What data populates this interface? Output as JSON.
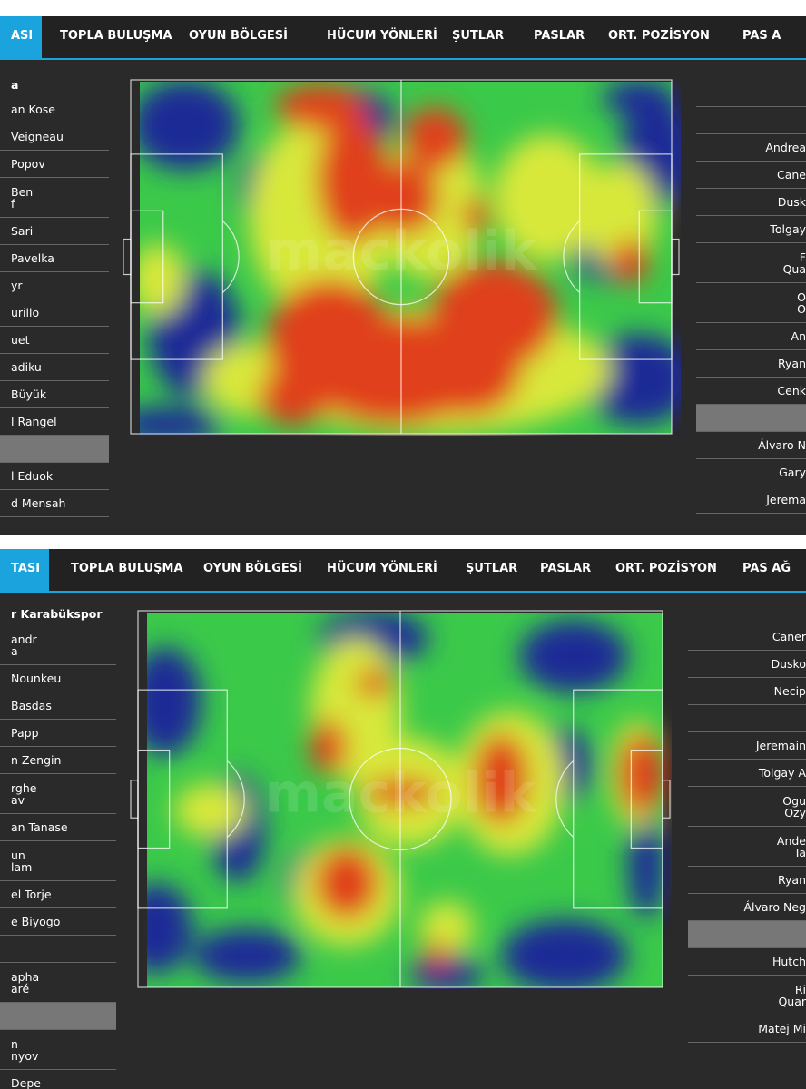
{
  "watermark": "mackolik",
  "panels": [
    {
      "tabs": [
        "ASI",
        "TOPLA BULUŞMA",
        "OYUN BÖLGESİ",
        "HÜCUM YÖNLERİ",
        "ŞUTLAR",
        "PASLAR",
        "ORT. POZİSYON",
        "PAS A"
      ],
      "left_players": [
        "a",
        "an Kose",
        "Veigneau",
        "Popov",
        "Ben\nf",
        "Sari",
        "Pavelka",
        "yr",
        "urillo",
        "uet",
        "adiku",
        "Büyük",
        "l Rangel",
        "l Eduok",
        "d Mensah"
      ],
      "right_players": [
        "Andrea",
        "Cane",
        "Dusk",
        "Tolgay",
        "F\nQua",
        "O\nO",
        "An",
        "Ryan",
        "Cenk",
        "Álvaro N",
        "Gary",
        "Jerema"
      ]
    },
    {
      "tabs": [
        "TASI",
        "TOPLA BULUŞMA",
        "OYUN BÖLGESİ",
        "HÜCUM YÖNLERİ",
        "ŞUTLAR",
        "PASLAR",
        "ORT. POZİSYON",
        "PAS AĞ"
      ],
      "left_players": [
        "r Karabükspor",
        "andr\na",
        "Nounkeu",
        "Basdas",
        "Papp",
        "n Zengin",
        "rghe\nav",
        "an Tanase",
        "un\nlam",
        "el Torje",
        "e Biyogo",
        "apha\naré",
        "n\nnyov",
        "Depe"
      ],
      "right_players": [
        "Caner",
        "Dusko",
        "Necip",
        "Jeremain",
        "Tolgay A",
        "Ogu\nOzy",
        "Ande\nTa",
        "Ryan",
        "Álvaro Neg",
        "Hutch",
        "Ri\nQuar",
        "Matej Mi"
      ]
    }
  ]
}
